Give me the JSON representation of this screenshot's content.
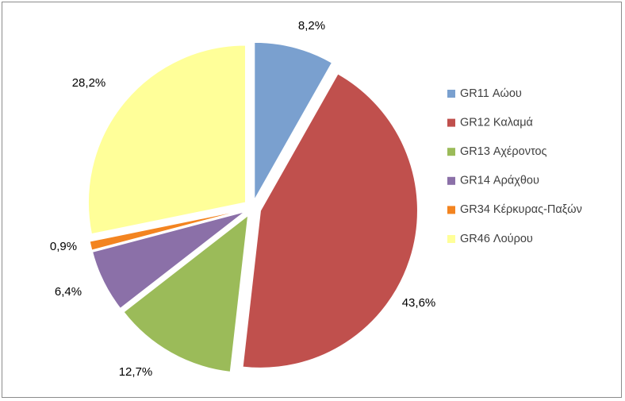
{
  "chart_data": {
    "type": "pie",
    "exploded": true,
    "legend_position": "right",
    "series": [
      {
        "label": "GR11 Αώου",
        "value": 8.2,
        "value_label": "8,2%",
        "color": "#7aa0cf"
      },
      {
        "label": "GR12 Καλαμά",
        "value": 43.6,
        "value_label": "43,6%",
        "color": "#c0504d"
      },
      {
        "label": "GR13 Αχέροντος",
        "value": 12.7,
        "value_label": "12,7%",
        "color": "#9bbb59"
      },
      {
        "label": "GR14 Αράχθου",
        "value": 6.4,
        "value_label": "6,4%",
        "color": "#8b70a8"
      },
      {
        "label": "GR34 Κέρκυρας-Παξών",
        "value": 0.9,
        "value_label": "0,9%",
        "color": "#f38420"
      },
      {
        "label": "GR46 Λούρου",
        "value": 28.2,
        "value_label": "28,2%",
        "color": "#ffff99"
      }
    ]
  }
}
